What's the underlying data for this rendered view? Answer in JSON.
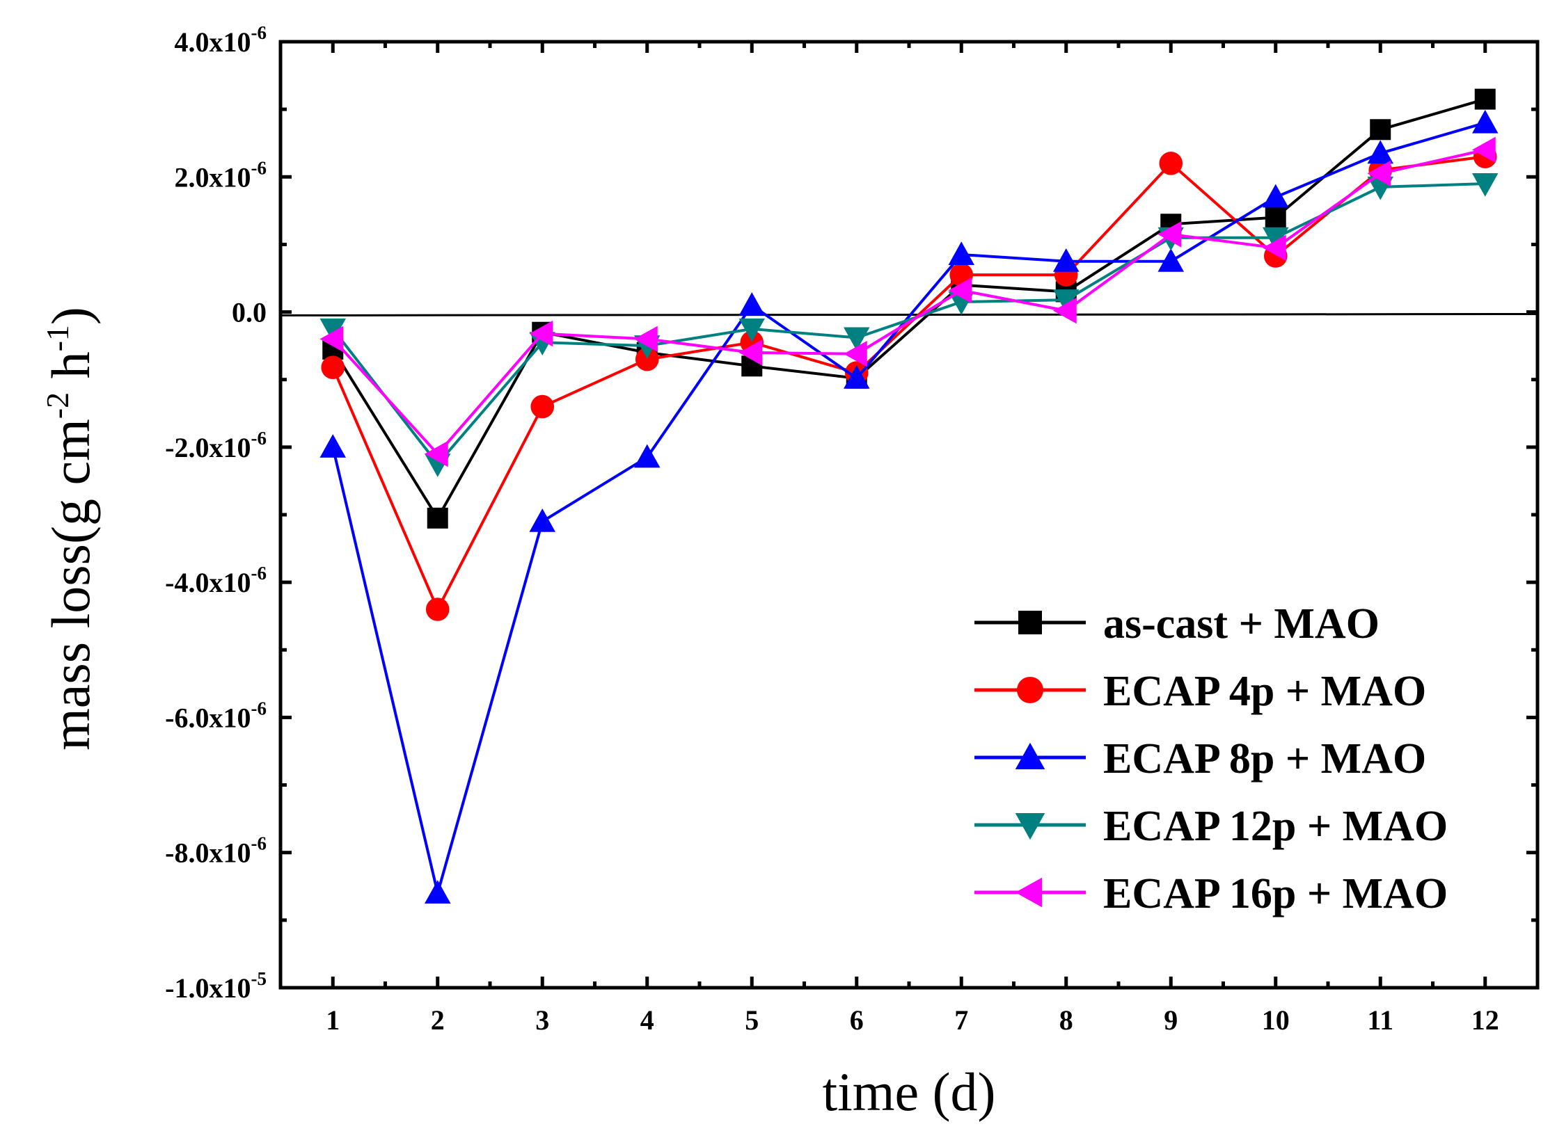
{
  "chart_data": {
    "type": "line",
    "title": "",
    "xlabel": "time (d)",
    "ylabel_parts": [
      "mass loss(g cm",
      "-2",
      " h",
      "-1",
      ")"
    ],
    "x": [
      1,
      2,
      3,
      4,
      5,
      6,
      7,
      8,
      9,
      10,
      11,
      12
    ],
    "xlim": [
      0.5,
      12.5
    ],
    "ylim": [
      -1e-05,
      4e-06
    ],
    "y_ticks": [
      {
        "value": 4e-06,
        "mantissa": "4.0x10",
        "exp": "-6"
      },
      {
        "value": 2e-06,
        "mantissa": "2.0x10",
        "exp": "-6"
      },
      {
        "value": 0.0,
        "mantissa": "0.0",
        "exp": ""
      },
      {
        "value": -2e-06,
        "mantissa": "-2.0x10",
        "exp": "-6"
      },
      {
        "value": -4e-06,
        "mantissa": "-4.0x10",
        "exp": "-6"
      },
      {
        "value": -6e-06,
        "mantissa": "-6.0x10",
        "exp": "-6"
      },
      {
        "value": -8e-06,
        "mantissa": "-8.0x10",
        "exp": "-6"
      },
      {
        "value": -1e-05,
        "mantissa": "-1.0x10",
        "exp": "-5"
      }
    ],
    "x_tick_labels": [
      "1",
      "2",
      "3",
      "4",
      "5",
      "6",
      "7",
      "8",
      "9",
      "10",
      "11",
      "12"
    ],
    "reference_line": {
      "y_start": -5e-08,
      "y_end": -3e-08,
      "color": "#000000"
    },
    "legend_position": "bottom-right",
    "grid": false,
    "series": [
      {
        "name": "as-cast + MAO",
        "color": "#000000",
        "marker": "square",
        "values": [
          -5.5e-07,
          -3.05e-06,
          -3e-07,
          -6e-07,
          -8e-07,
          -9.8e-07,
          4e-07,
          3e-07,
          1.3e-06,
          1.4e-06,
          2.7e-06,
          3.15e-06
        ]
      },
      {
        "name": "ECAP 4p + MAO",
        "color": "#ff0000",
        "marker": "circle",
        "values": [
          -8.2e-07,
          -4.4e-06,
          -1.4e-06,
          -7e-07,
          -4.5e-07,
          -9e-07,
          5.5e-07,
          5.5e-07,
          2.2e-06,
          8.3e-07,
          2.1e-06,
          2.3e-06
        ]
      },
      {
        "name": "ECAP 8p + MAO",
        "color": "#0000ff",
        "marker": "triangle-up",
        "values": [
          -2e-06,
          -8.6e-06,
          -3.1e-06,
          -2.15e-06,
          1e-07,
          -9.8e-07,
          8.5e-07,
          7.5e-07,
          7.5e-07,
          1.7e-06,
          2.35e-06,
          2.8e-06
        ]
      },
      {
        "name": "ECAP 12p + MAO",
        "color": "#008080",
        "marker": "triangle-down",
        "values": [
          -2.5e-07,
          -2.25e-06,
          -4.5e-07,
          -5e-07,
          -2.5e-07,
          -3.8e-07,
          1.5e-07,
          1.8e-07,
          1.1e-06,
          1.1e-06,
          1.85e-06,
          1.9e-06
        ]
      },
      {
        "name": "ECAP 16p + MAO",
        "color": "#ff00ff",
        "marker": "triangle-left",
        "values": [
          -4e-07,
          -2.1e-06,
          -3.2e-07,
          -4e-07,
          -6e-07,
          -6.2e-07,
          3.2e-07,
          2e-08,
          1.15e-06,
          9.5e-07,
          2.05e-06,
          2.4e-06
        ]
      }
    ]
  }
}
